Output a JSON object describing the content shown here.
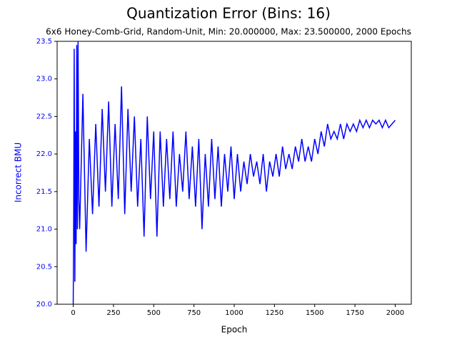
{
  "chart_data": {
    "type": "line",
    "title": "Quantization Error (Bins: 16)",
    "subtitle": "6x6 Honey-Comb-Grid, Random-Unit, Min: 20.000000, Max: 23.500000, 2000 Epochs",
    "x_label": "Epoch",
    "y_label": "Incorrect BMU",
    "xlim": [
      -100,
      2100
    ],
    "ylim": [
      20,
      23.5
    ],
    "xticks": [
      0,
      250,
      500,
      750,
      1000,
      1250,
      1500,
      1750,
      2000
    ],
    "yticks": [
      {
        "value": 20,
        "label": "20.0"
      },
      20.5,
      {
        "value": 21,
        "label": "21.0"
      },
      21.5,
      {
        "value": 22,
        "label": "22.0"
      },
      22.5,
      {
        "value": 23,
        "label": "23.0"
      },
      23.5
    ],
    "y_axis_color": "#0000ff",
    "grid": false,
    "x": [
      0,
      3,
      6,
      10,
      14,
      18,
      22,
      26,
      30,
      35,
      40,
      60,
      80,
      100,
      120,
      140,
      160,
      180,
      200,
      220,
      240,
      260,
      280,
      300,
      320,
      340,
      360,
      380,
      400,
      420,
      440,
      460,
      480,
      500,
      520,
      540,
      560,
      580,
      600,
      620,
      640,
      660,
      680,
      700,
      720,
      740,
      760,
      780,
      800,
      820,
      840,
      860,
      880,
      900,
      920,
      940,
      960,
      980,
      1000,
      1020,
      1040,
      1060,
      1080,
      1100,
      1120,
      1140,
      1160,
      1180,
      1200,
      1220,
      1240,
      1260,
      1280,
      1300,
      1320,
      1340,
      1360,
      1380,
      1400,
      1420,
      1440,
      1460,
      1480,
      1500,
      1520,
      1540,
      1560,
      1580,
      1600,
      1620,
      1640,
      1660,
      1680,
      1700,
      1720,
      1740,
      1760,
      1780,
      1800,
      1820,
      1840,
      1860,
      1880,
      1900,
      1920,
      1940,
      1960,
      1980,
      2000
    ],
    "series": [
      {
        "name": "Incorrect BMU",
        "color": "#0000ff",
        "values": [
          20.0,
          21.2,
          23.4,
          20.3,
          22.3,
          20.8,
          23.45,
          21.0,
          23.5,
          21.4,
          21.0,
          22.8,
          20.7,
          22.2,
          21.2,
          22.4,
          21.3,
          22.6,
          21.5,
          22.7,
          21.3,
          22.4,
          21.4,
          22.9,
          21.2,
          22.6,
          21.5,
          22.5,
          21.3,
          22.2,
          20.9,
          22.5,
          21.4,
          22.3,
          20.9,
          22.3,
          21.3,
          22.2,
          21.4,
          22.3,
          21.3,
          22.0,
          21.5,
          22.3,
          21.4,
          22.1,
          21.3,
          22.2,
          21.0,
          22.0,
          21.3,
          22.2,
          21.4,
          22.1,
          21.3,
          22.0,
          21.5,
          22.1,
          21.4,
          22.0,
          21.5,
          21.9,
          21.6,
          22.0,
          21.7,
          21.9,
          21.6,
          22.0,
          21.5,
          21.9,
          21.7,
          22.0,
          21.7,
          22.1,
          21.8,
          22.0,
          21.8,
          22.1,
          21.9,
          22.2,
          21.9,
          22.1,
          21.9,
          22.2,
          22.0,
          22.3,
          22.1,
          22.4,
          22.2,
          22.3,
          22.2,
          22.4,
          22.2,
          22.4,
          22.3,
          22.4,
          22.3,
          22.45,
          22.35,
          22.45,
          22.35,
          22.45,
          22.4,
          22.45,
          22.35,
          22.45,
          22.35,
          22.4,
          22.45
        ]
      }
    ]
  }
}
